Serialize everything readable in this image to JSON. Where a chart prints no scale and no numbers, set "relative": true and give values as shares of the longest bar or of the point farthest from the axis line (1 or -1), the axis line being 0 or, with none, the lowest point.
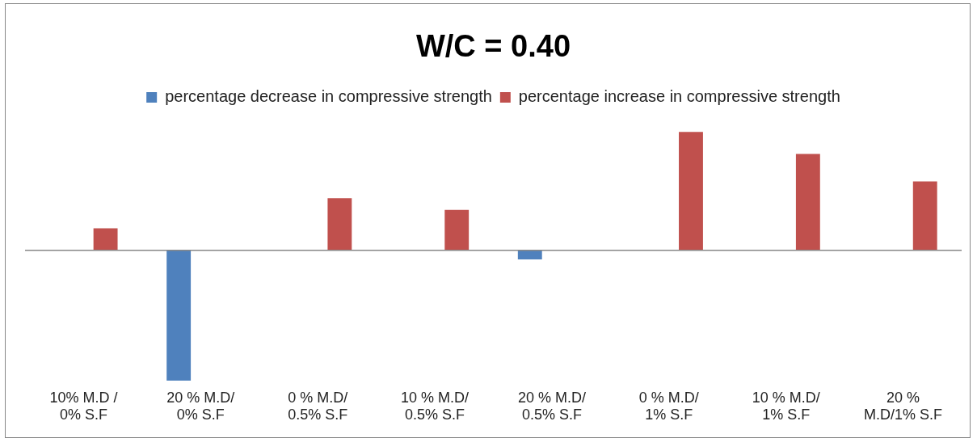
{
  "chart_data": {
    "type": "bar",
    "title": "W/C = 0.40",
    "relative": true,
    "legend": "top",
    "grid": false,
    "categories": [
      "10% M.D / 0% S.F",
      "20 % M.D/ 0% S.F",
      "0 % M.D/ 0.5% S.F",
      "10 % M.D/ 0.5% S.F",
      "20 % M.D/ 0.5% S.F",
      "0 % M.D/ 1% S.F",
      "10 % M.D/ 1% S.F",
      "20 % M.D/1% S.F"
    ],
    "series": [
      {
        "name": "percentage decrease in compressive strength",
        "color": "#4f81bd",
        "values": [
          null,
          -1,
          null,
          null,
          -0.07,
          null,
          null,
          null
        ]
      },
      {
        "name": "percentage increase in compressive strength",
        "color": "#c0504d",
        "values": [
          0.17,
          null,
          0.4,
          0.31,
          null,
          0.91,
          0.74,
          0.53
        ]
      }
    ]
  }
}
